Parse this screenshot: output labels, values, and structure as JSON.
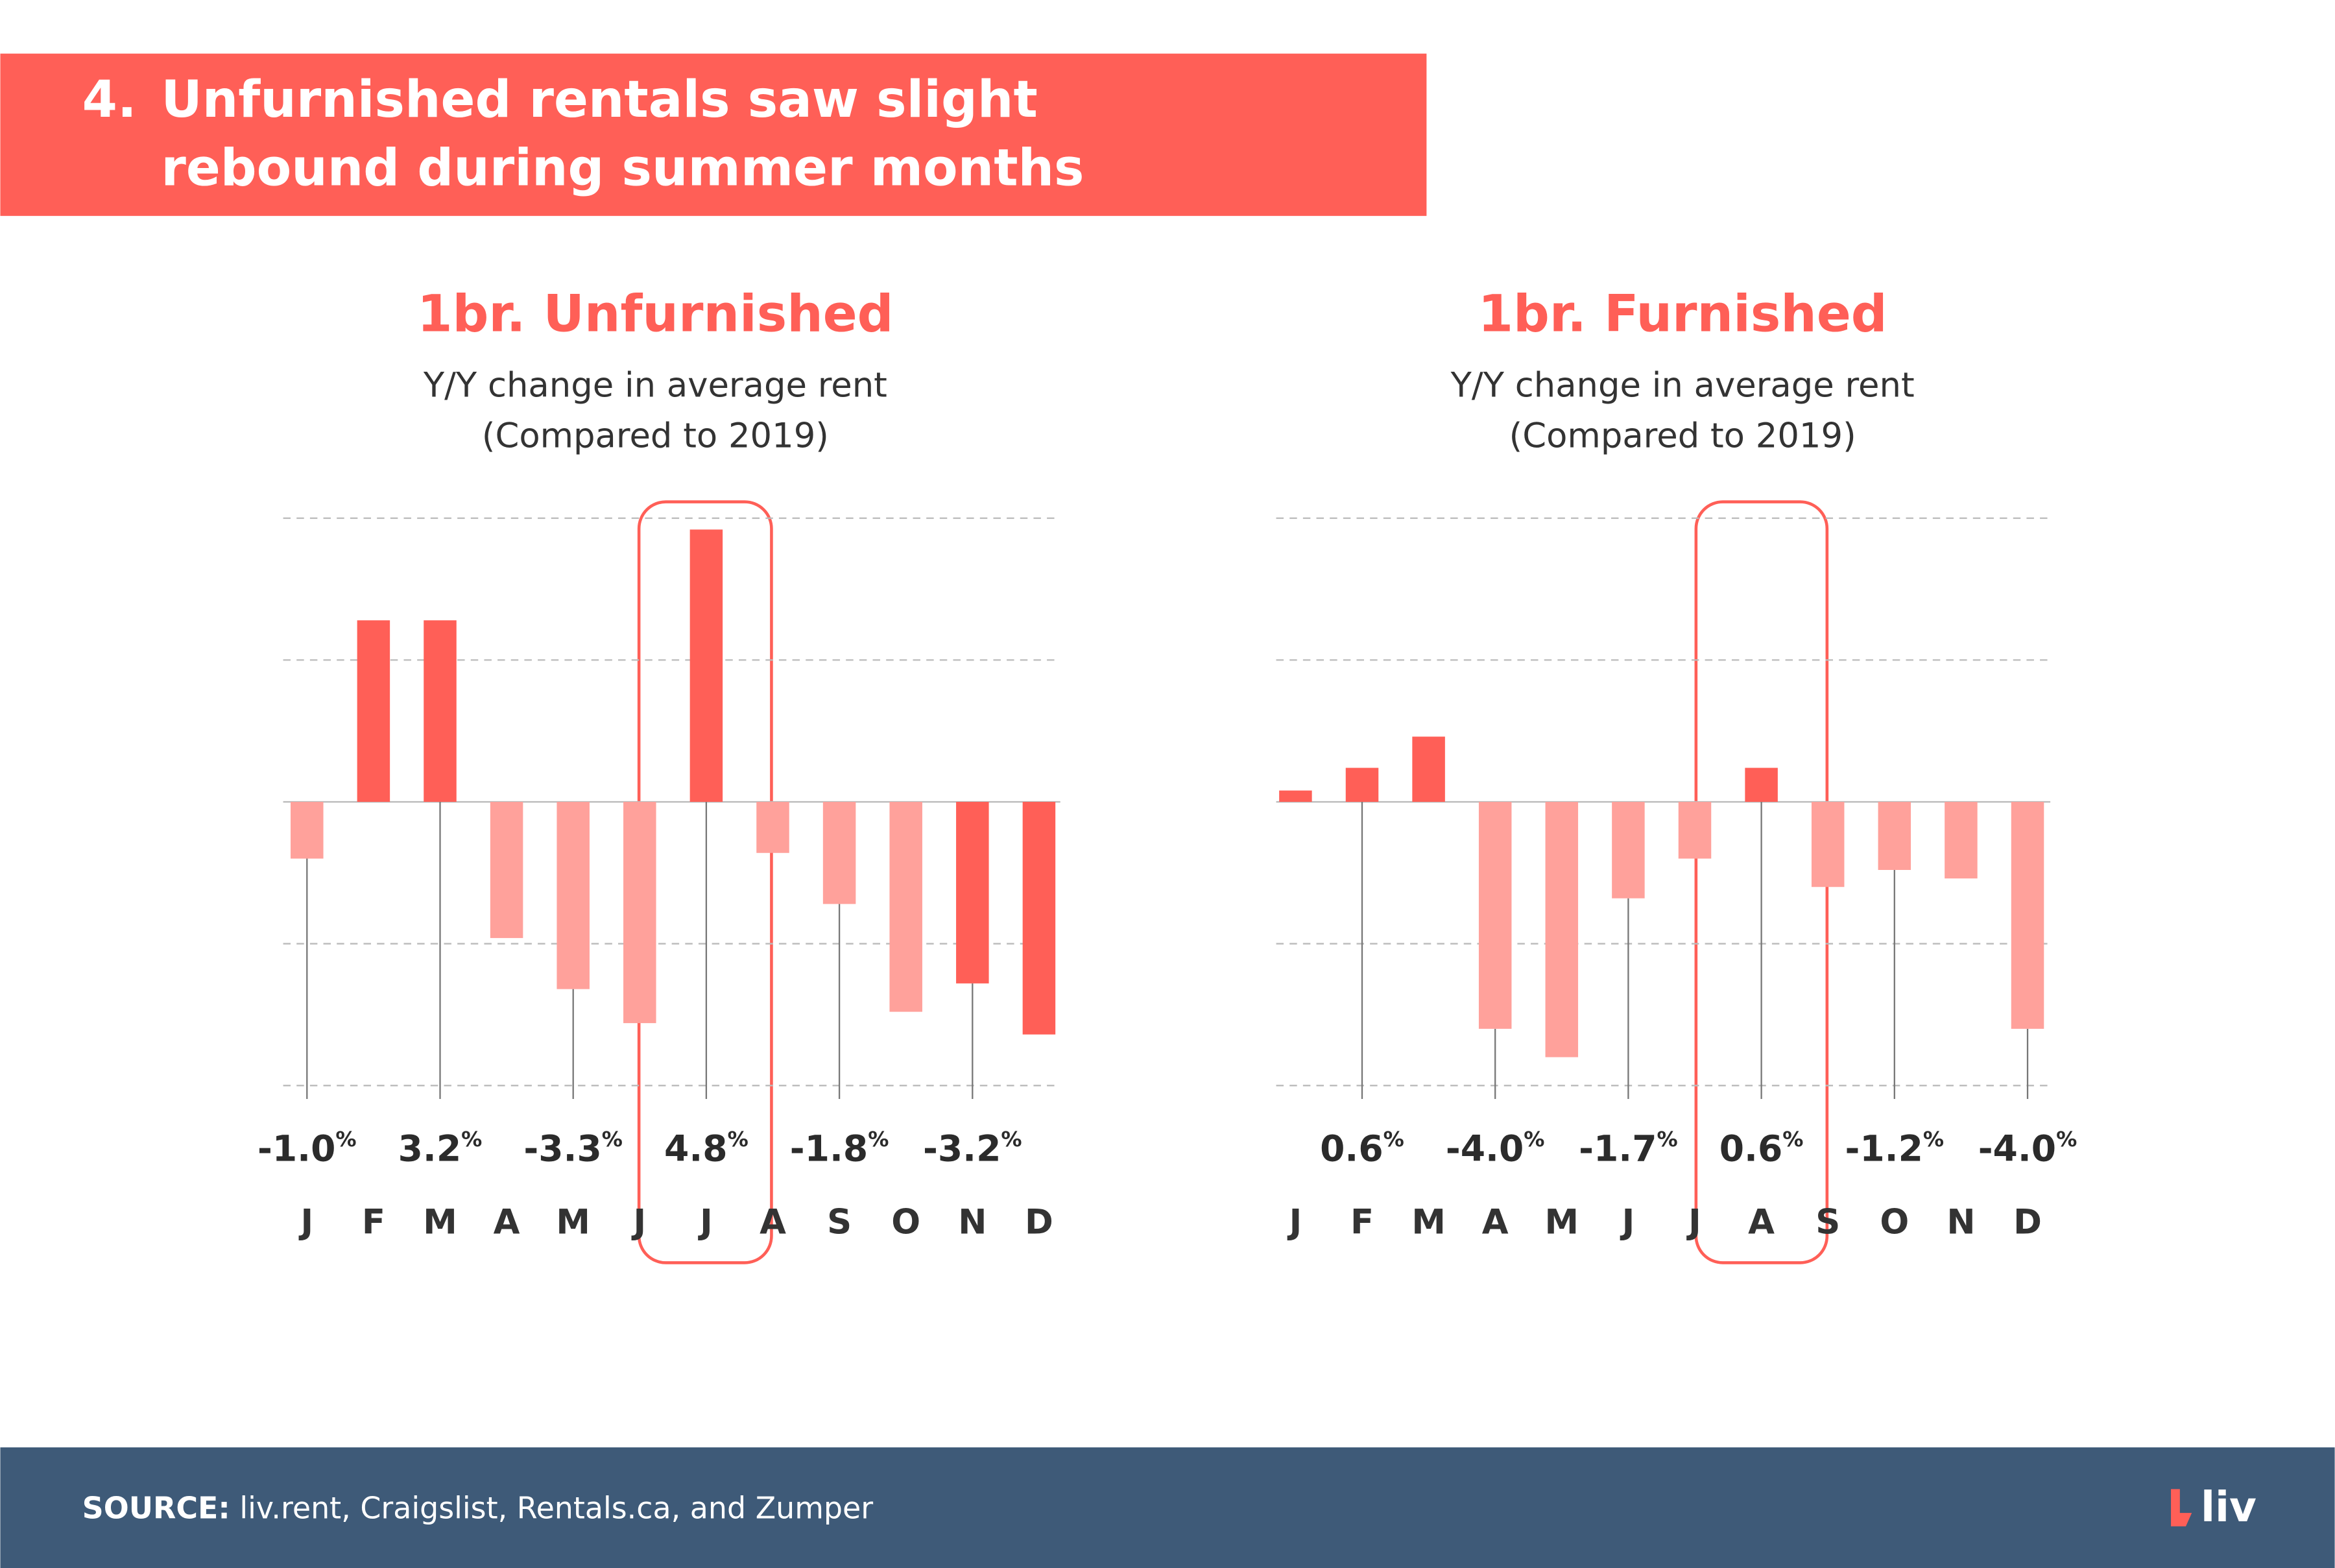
{
  "header": {
    "number": "4.",
    "title_lines": [
      "Unfurnished rentals saw slight",
      "rebound during summer months"
    ]
  },
  "chart_data": [
    {
      "type": "bar",
      "title": "1br. Unfurnished",
      "subtitle": [
        "Y/Y change in average rent",
        "(Compared to 2019)"
      ],
      "categories": [
        "J",
        "F",
        "M",
        "A",
        "M",
        "J",
        "J",
        "A",
        "S",
        "O",
        "N",
        "D"
      ],
      "values": [
        -1.0,
        3.2,
        3.2,
        -2.4,
        -3.3,
        -3.9,
        4.8,
        -0.9,
        -1.8,
        -3.7,
        -3.2,
        -4.1
      ],
      "value_labels": [
        "-1.0%",
        null,
        "3.2%",
        null,
        "-3.3%",
        null,
        "4.8%",
        null,
        "-1.8%",
        null,
        "-3.2%",
        null
      ],
      "colors": [
        "#ffa19b",
        "#ff5f57",
        "#ff5f57",
        "#ffa19b",
        "#ffa19b",
        "#ffa19b",
        "#ff5f57",
        "#ffa19b",
        "#ffa19b",
        "#ffa19b",
        "#ff5f57",
        "#ff5f57"
      ],
      "ylim": [
        -5,
        5
      ],
      "yticks": [
        -5,
        -2.5,
        0,
        2.5,
        5
      ],
      "grid": true
    },
    {
      "type": "bar",
      "title": "1br. Furnished",
      "subtitle": [
        "Y/Y change in average rent",
        "(Compared to 2019)"
      ],
      "categories": [
        "J",
        "F",
        "M",
        "A",
        "M",
        "J",
        "J",
        "A",
        "S",
        "O",
        "N",
        "D"
      ],
      "values": [
        0.2,
        0.6,
        1.15,
        -4.0,
        -4.5,
        -1.7,
        -1.0,
        0.6,
        -1.5,
        -1.2,
        -1.35,
        -4.0
      ],
      "value_labels": [
        null,
        "0.6%",
        null,
        "-4.0%",
        null,
        "-1.7%",
        null,
        "0.6%",
        null,
        "-1.2%",
        null,
        "-4.0%"
      ],
      "colors": [
        "#ff5f57",
        "#ff5f57",
        "#ff5f57",
        "#ffa19b",
        "#ffa19b",
        "#ffa19b",
        "#ffa19b",
        "#ff5f57",
        "#ffa19b",
        "#ffa19b",
        "#ffa19b",
        "#ffa19b"
      ],
      "ylim": [
        -5,
        5
      ],
      "yticks": [
        -5,
        -2.5,
        0,
        2.5,
        5
      ],
      "grid": true
    }
  ],
  "footer": {
    "source_label": "SOURCE:",
    "source_text": " liv.rent, Craigslist, Rentals.ca, and Zumper",
    "logo": "liv"
  }
}
